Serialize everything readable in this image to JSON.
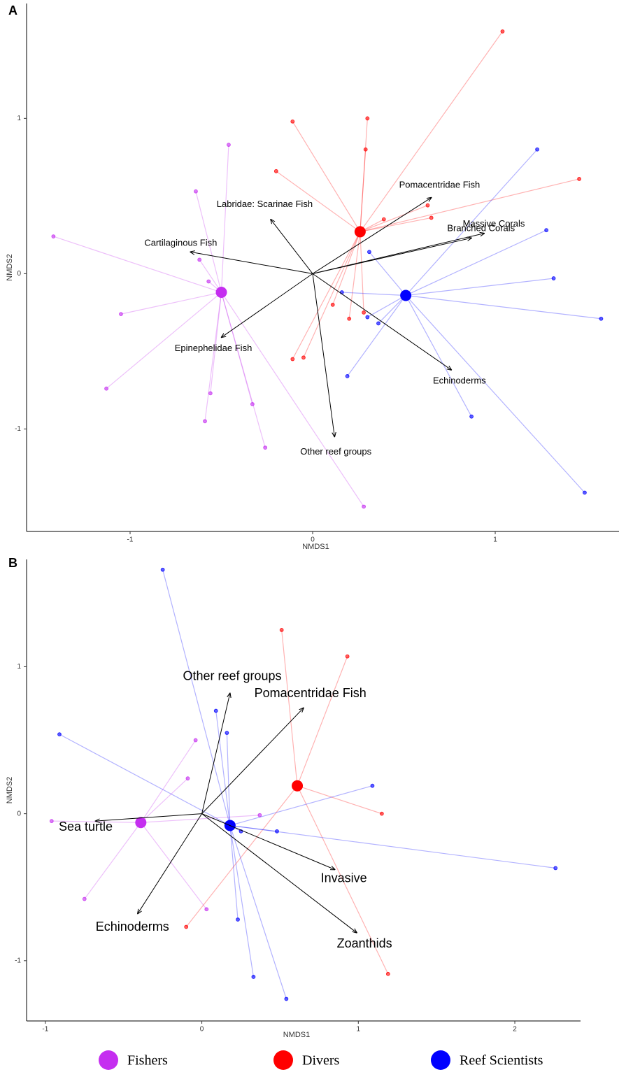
{
  "chart_data": [
    {
      "type": "nmds",
      "panel": "A",
      "x_label": "NMDS1",
      "y_label": "NMDS2",
      "xlim": [
        -1.567,
        1.678
      ],
      "ylim": [
        -1.66,
        1.74
      ],
      "xticks": [
        -1,
        0,
        1
      ],
      "yticks": [
        -1,
        0,
        1
      ],
      "series": [
        {
          "color": "#c52ef0",
          "centroid_x": -0.5,
          "centroid_y": -0.12,
          "x": [
            -1.42,
            -1.05,
            -1.13,
            -0.64,
            -0.62,
            -0.57,
            -0.46,
            -0.56,
            -0.59,
            -0.26,
            0.28,
            -0.33
          ],
          "y": [
            0.24,
            -0.26,
            -0.74,
            0.53,
            0.09,
            -0.05,
            0.83,
            -0.77,
            -0.95,
            -1.12,
            -1.5,
            -0.84
          ]
        },
        {
          "color": "#ff0000",
          "centroid_x": 0.26,
          "centroid_y": 0.27,
          "x": [
            -0.11,
            0.29,
            -0.2,
            0.3,
            1.46,
            1.04,
            0.63,
            0.39,
            0.65,
            -0.11,
            -0.05,
            0.11,
            0.2,
            0.28
          ],
          "y": [
            0.98,
            0.8,
            0.66,
            1.0,
            0.61,
            1.56,
            0.44,
            0.35,
            0.36,
            -0.55,
            -0.54,
            -0.2,
            -0.29,
            -0.25
          ]
        },
        {
          "color": "#0000ff",
          "centroid_x": 0.51,
          "centroid_y": -0.14,
          "x": [
            1.23,
            1.28,
            1.32,
            1.58,
            1.49,
            0.87,
            0.19,
            0.31,
            0.36,
            0.16,
            0.3
          ],
          "y": [
            0.8,
            0.28,
            -0.03,
            -0.29,
            -1.41,
            -0.92,
            -0.66,
            0.14,
            -0.32,
            -0.12,
            -0.28
          ]
        }
      ],
      "vectors": [
        {
          "label": "Cartilaginous Fish",
          "x": -0.67,
          "y": 0.14
        },
        {
          "label": "Labridae: Scarinae Fish",
          "x": -0.23,
          "y": 0.35
        },
        {
          "label": "Pomacentridae Fish",
          "x": 0.65,
          "y": 0.49
        },
        {
          "label": "Massive Corals",
          "x": 0.94,
          "y": 0.26
        },
        {
          "label": "Branched Corals",
          "x": 0.87,
          "y": 0.23
        },
        {
          "label": "Epinephelidae Fish",
          "x": -0.5,
          "y": -0.41
        },
        {
          "label": "Echinoderms",
          "x": 0.76,
          "y": -0.62
        },
        {
          "label": "Other reef groups",
          "x": 0.12,
          "y": -1.05
        }
      ]
    },
    {
      "type": "nmds",
      "panel": "B",
      "x_label": "NMDS1",
      "y_label": "NMDS2",
      "xlim": [
        -1.12,
        2.42
      ],
      "ylim": [
        -1.41,
        1.73
      ],
      "xticks": [
        -1,
        0,
        1,
        2
      ],
      "yticks": [
        -1,
        0,
        1
      ],
      "series": [
        {
          "color": "#c52ef0",
          "centroid_x": -0.39,
          "centroid_y": -0.06,
          "x": [
            -0.96,
            -0.75,
            -0.04,
            0.03,
            -0.09,
            0.37
          ],
          "y": [
            -0.05,
            -0.58,
            0.5,
            -0.65,
            0.24,
            -0.01
          ]
        },
        {
          "color": "#ff0000",
          "centroid_x": 0.61,
          "centroid_y": 0.19,
          "x": [
            0.93,
            1.15,
            1.19,
            0.51,
            -0.1
          ],
          "y": [
            1.07,
            0.0,
            -1.09,
            1.25,
            -0.77
          ]
        },
        {
          "color": "#0000ff",
          "centroid_x": 0.18,
          "centroid_y": -0.08,
          "x": [
            -0.25,
            -0.91,
            2.26,
            1.09,
            0.23,
            0.33,
            0.54,
            0.16,
            0.25,
            0.48,
            0.09
          ],
          "y": [
            1.66,
            0.54,
            -0.37,
            0.19,
            -0.72,
            -1.11,
            -1.26,
            0.55,
            -0.12,
            -0.12,
            0.7
          ]
        }
      ],
      "vectors": [
        {
          "label": "Other reef groups",
          "x": 0.18,
          "y": 0.82
        },
        {
          "label": "Pomacentridae Fish",
          "x": 0.65,
          "y": 0.72
        },
        {
          "label": "Sea turtle",
          "x": -0.68,
          "y": -0.05
        },
        {
          "label": "Invasive",
          "x": 0.85,
          "y": -0.38
        },
        {
          "label": "Zoanthids",
          "x": 0.99,
          "y": -0.81
        },
        {
          "label": "Echinoderms",
          "x": -0.41,
          "y": -0.68
        }
      ]
    }
  ],
  "legend": [
    {
      "name": "Fishers",
      "color": "#c52ef0"
    },
    {
      "name": "Divers",
      "color": "#ff0000"
    },
    {
      "name": "Reef Scientists",
      "color": "#0000ff"
    }
  ]
}
